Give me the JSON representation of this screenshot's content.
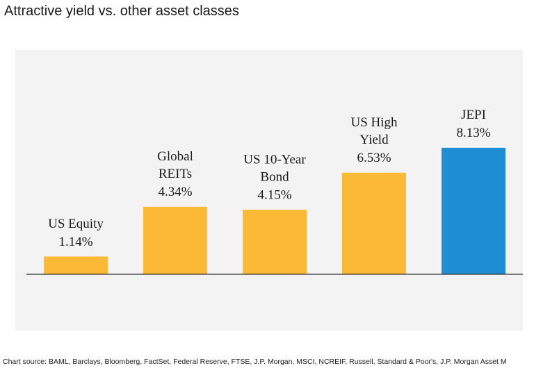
{
  "chart_data": {
    "type": "bar",
    "title": "Attractive yield vs. other asset classes",
    "categories": [
      [
        "US Equity"
      ],
      [
        "Global",
        "REITs"
      ],
      [
        "US 10-Year",
        "Bond"
      ],
      [
        "US High",
        "Yield"
      ],
      [
        "JEPI"
      ]
    ],
    "values": [
      1.14,
      4.34,
      4.15,
      6.53,
      8.13
    ],
    "value_labels": [
      "1.14%",
      "4.34%",
      "4.15%",
      "6.53%",
      "8.13%"
    ],
    "colors": [
      "#fbb935",
      "#fbb935",
      "#fbb935",
      "#fbb935",
      "#1f8dd4"
    ],
    "source": "Chart source: BAML, Barclays, Bloomberg, FactSet, Federal Reserve, FTSE, J.P. Morgan, MSCI, NCREIF, Russell, Standard & Poor's, J.P. Morgan Asset M"
  }
}
